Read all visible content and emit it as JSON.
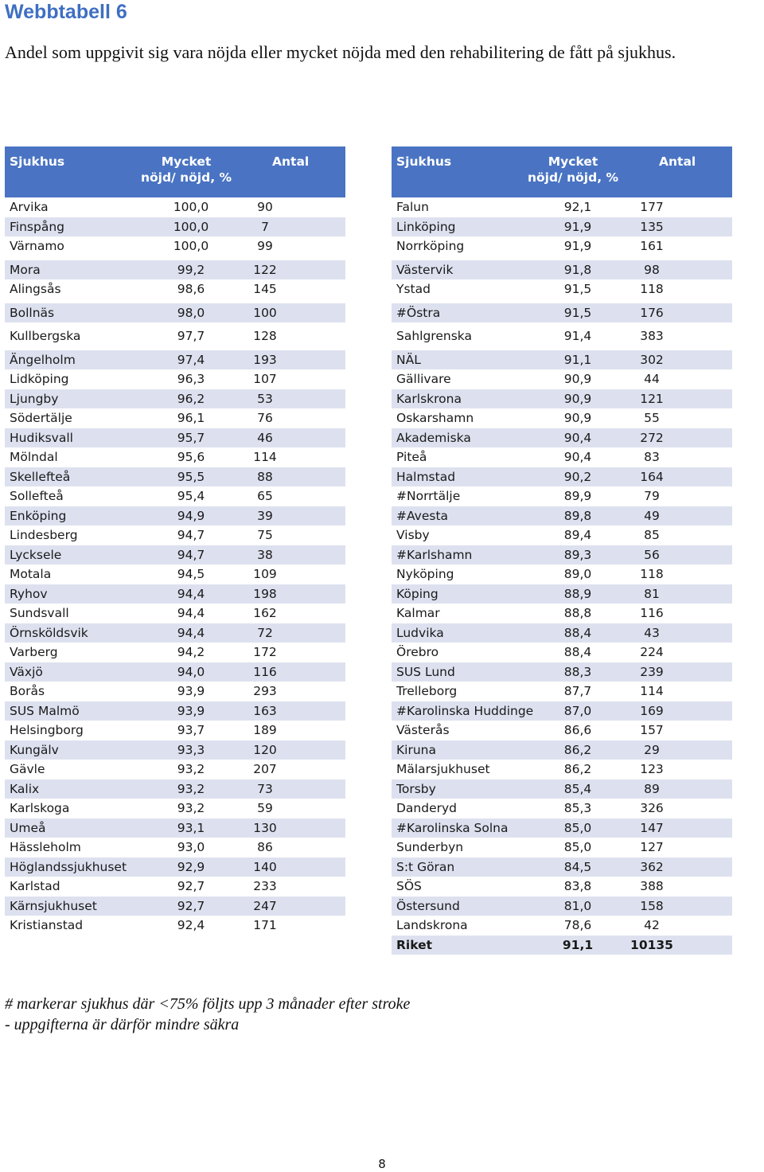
{
  "heading": "Webbtabell 6",
  "subtitle": "Andel som uppgivit sig vara nöjda eller mycket nöjda med den rehabilitering de fått på sjukhus.",
  "headers": {
    "hospital": "Sjukhus",
    "satisfied_line1": "Mycket",
    "satisfied_line2": "nöjd/ nöjd, %",
    "count": "Antal"
  },
  "colors": {
    "header_bg": "#4a74c3",
    "header_text": "#ffffff",
    "row_shade": "#dde1ef",
    "heading": "#3f6fc2"
  },
  "left_table": [
    {
      "name": "Arvika",
      "pct": "100,0",
      "n": "90",
      "shade": false,
      "gap": false
    },
    {
      "name": "Finspång",
      "pct": "100,0",
      "n": "7",
      "shade": true,
      "gap": false
    },
    {
      "name": "Värnamo",
      "pct": "100,0",
      "n": "99",
      "shade": false,
      "gap": false
    },
    {
      "name": "Mora",
      "pct": "99,2",
      "n": "122",
      "shade": true,
      "gap": true
    },
    {
      "name": "Alingsås",
      "pct": "98,6",
      "n": "145",
      "shade": false,
      "gap": false
    },
    {
      "name": "Bollnäs",
      "pct": "98,0",
      "n": "100",
      "shade": true,
      "gap": true
    },
    {
      "name": "Kullbergska",
      "pct": "97,7",
      "n": "128",
      "shade": false,
      "gap": true
    },
    {
      "name": "Ängelholm",
      "pct": "97,4",
      "n": "193",
      "shade": true,
      "gap": true
    },
    {
      "name": "Lidköping",
      "pct": "96,3",
      "n": "107",
      "shade": false,
      "gap": false
    },
    {
      "name": "Ljungby",
      "pct": "96,2",
      "n": "53",
      "shade": true,
      "gap": false
    },
    {
      "name": "Södertälje",
      "pct": "96,1",
      "n": "76",
      "shade": false,
      "gap": false
    },
    {
      "name": "Hudiksvall",
      "pct": "95,7",
      "n": "46",
      "shade": true,
      "gap": false
    },
    {
      "name": "Mölndal",
      "pct": "95,6",
      "n": "114",
      "shade": false,
      "gap": false
    },
    {
      "name": "Skellefteå",
      "pct": "95,5",
      "n": "88",
      "shade": true,
      "gap": false
    },
    {
      "name": "Sollefteå",
      "pct": "95,4",
      "n": "65",
      "shade": false,
      "gap": false
    },
    {
      "name": "Enköping",
      "pct": "94,9",
      "n": "39",
      "shade": true,
      "gap": false
    },
    {
      "name": "Lindesberg",
      "pct": "94,7",
      "n": "75",
      "shade": false,
      "gap": false
    },
    {
      "name": "Lycksele",
      "pct": "94,7",
      "n": "38",
      "shade": true,
      "gap": false
    },
    {
      "name": "Motala",
      "pct": "94,5",
      "n": "109",
      "shade": false,
      "gap": false
    },
    {
      "name": "Ryhov",
      "pct": "94,4",
      "n": "198",
      "shade": true,
      "gap": false
    },
    {
      "name": "Sundsvall",
      "pct": "94,4",
      "n": "162",
      "shade": false,
      "gap": false
    },
    {
      "name": "Örnsköldsvik",
      "pct": "94,4",
      "n": "72",
      "shade": true,
      "gap": false
    },
    {
      "name": "Varberg",
      "pct": "94,2",
      "n": "172",
      "shade": false,
      "gap": false
    },
    {
      "name": "Växjö",
      "pct": "94,0",
      "n": "116",
      "shade": true,
      "gap": false
    },
    {
      "name": "Borås",
      "pct": "93,9",
      "n": "293",
      "shade": false,
      "gap": false
    },
    {
      "name": "SUS Malmö",
      "pct": "93,9",
      "n": "163",
      "shade": true,
      "gap": false
    },
    {
      "name": "Helsingborg",
      "pct": "93,7",
      "n": "189",
      "shade": false,
      "gap": false
    },
    {
      "name": "Kungälv",
      "pct": "93,3",
      "n": "120",
      "shade": true,
      "gap": false
    },
    {
      "name": "Gävle",
      "pct": "93,2",
      "n": "207",
      "shade": false,
      "gap": false
    },
    {
      "name": "Kalix",
      "pct": "93,2",
      "n": "73",
      "shade": true,
      "gap": false
    },
    {
      "name": "Karlskoga",
      "pct": "93,2",
      "n": "59",
      "shade": false,
      "gap": false
    },
    {
      "name": "Umeå",
      "pct": "93,1",
      "n": "130",
      "shade": true,
      "gap": false
    },
    {
      "name": "Hässleholm",
      "pct": "93,0",
      "n": "86",
      "shade": false,
      "gap": false
    },
    {
      "name": "Höglandssjukhuset",
      "pct": "92,9",
      "n": "140",
      "shade": true,
      "gap": false
    },
    {
      "name": "Karlstad",
      "pct": "92,7",
      "n": "233",
      "shade": false,
      "gap": false
    },
    {
      "name": "Kärnsjukhuset",
      "pct": "92,7",
      "n": "247",
      "shade": true,
      "gap": false
    },
    {
      "name": "Kristianstad",
      "pct": "92,4",
      "n": "171",
      "shade": false,
      "gap": false
    }
  ],
  "right_table": [
    {
      "name": "Falun",
      "pct": "92,1",
      "n": "177",
      "shade": false,
      "gap": false
    },
    {
      "name": "Linköping",
      "pct": "91,9",
      "n": "135",
      "shade": true,
      "gap": false
    },
    {
      "name": "Norrköping",
      "pct": "91,9",
      "n": "161",
      "shade": false,
      "gap": false
    },
    {
      "name": "Västervik",
      "pct": "91,8",
      "n": "98",
      "shade": true,
      "gap": true
    },
    {
      "name": "Ystad",
      "pct": "91,5",
      "n": "118",
      "shade": false,
      "gap": false
    },
    {
      "name": "#Östra",
      "pct": "91,5",
      "n": "176",
      "shade": true,
      "gap": true
    },
    {
      "name": "Sahlgrenska",
      "pct": "91,4",
      "n": "383",
      "shade": false,
      "gap": true
    },
    {
      "name": "NÄL",
      "pct": "91,1",
      "n": "302",
      "shade": true,
      "gap": true
    },
    {
      "name": "Gällivare",
      "pct": "90,9",
      "n": "44",
      "shade": false,
      "gap": false
    },
    {
      "name": "Karlskrona",
      "pct": "90,9",
      "n": "121",
      "shade": true,
      "gap": false
    },
    {
      "name": "Oskarshamn",
      "pct": "90,9",
      "n": "55",
      "shade": false,
      "gap": false
    },
    {
      "name": "Akademiska",
      "pct": "90,4",
      "n": "272",
      "shade": true,
      "gap": false
    },
    {
      "name": "Piteå",
      "pct": "90,4",
      "n": "83",
      "shade": false,
      "gap": false
    },
    {
      "name": "Halmstad",
      "pct": "90,2",
      "n": "164",
      "shade": true,
      "gap": false
    },
    {
      "name": "#Norrtälje",
      "pct": "89,9",
      "n": "79",
      "shade": false,
      "gap": false
    },
    {
      "name": "#Avesta",
      "pct": "89,8",
      "n": "49",
      "shade": true,
      "gap": false
    },
    {
      "name": "Visby",
      "pct": "89,4",
      "n": "85",
      "shade": false,
      "gap": false
    },
    {
      "name": "#Karlshamn",
      "pct": "89,3",
      "n": "56",
      "shade": true,
      "gap": false
    },
    {
      "name": "Nyköping",
      "pct": "89,0",
      "n": "118",
      "shade": false,
      "gap": false
    },
    {
      "name": "Köping",
      "pct": "88,9",
      "n": "81",
      "shade": true,
      "gap": false
    },
    {
      "name": "Kalmar",
      "pct": "88,8",
      "n": "116",
      "shade": false,
      "gap": false
    },
    {
      "name": "Ludvika",
      "pct": "88,4",
      "n": "43",
      "shade": true,
      "gap": false
    },
    {
      "name": "Örebro",
      "pct": "88,4",
      "n": "224",
      "shade": false,
      "gap": false
    },
    {
      "name": "SUS Lund",
      "pct": "88,3",
      "n": "239",
      "shade": true,
      "gap": false
    },
    {
      "name": "Trelleborg",
      "pct": "87,7",
      "n": "114",
      "shade": false,
      "gap": false
    },
    {
      "name": "#Karolinska Huddinge",
      "pct": "87,0",
      "n": "169",
      "shade": true,
      "gap": false
    },
    {
      "name": "Västerås",
      "pct": "86,6",
      "n": "157",
      "shade": false,
      "gap": false
    },
    {
      "name": "Kiruna",
      "pct": "86,2",
      "n": "29",
      "shade": true,
      "gap": false
    },
    {
      "name": "Mälarsjukhuset",
      "pct": "86,2",
      "n": "123",
      "shade": false,
      "gap": false
    },
    {
      "name": "Torsby",
      "pct": "85,4",
      "n": "89",
      "shade": true,
      "gap": false
    },
    {
      "name": "Danderyd",
      "pct": "85,3",
      "n": "326",
      "shade": false,
      "gap": false
    },
    {
      "name": "#Karolinska Solna",
      "pct": "85,0",
      "n": "147",
      "shade": true,
      "gap": false
    },
    {
      "name": "Sunderbyn",
      "pct": "85,0",
      "n": "127",
      "shade": false,
      "gap": false
    },
    {
      "name": "S:t Göran",
      "pct": "84,5",
      "n": "362",
      "shade": true,
      "gap": false
    },
    {
      "name": "SÖS",
      "pct": "83,8",
      "n": "388",
      "shade": false,
      "gap": false
    },
    {
      "name": "Östersund",
      "pct": "81,0",
      "n": "158",
      "shade": true,
      "gap": false
    },
    {
      "name": "Landskrona",
      "pct": "78,6",
      "n": "42",
      "shade": false,
      "gap": false
    },
    {
      "name": "Riket",
      "pct": "91,1",
      "n": "10135",
      "shade": true,
      "gap": false,
      "total": true
    }
  ],
  "footnote": {
    "line1": "# markerar sjukhus där <75% följts upp 3 månader efter stroke",
    "line2": "- uppgifterna är därför mindre säkra"
  },
  "page_number": "8"
}
